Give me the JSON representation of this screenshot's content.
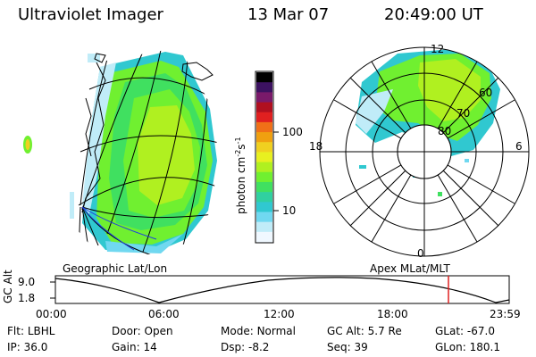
{
  "header": {
    "instrument": "Ultraviolet Imager",
    "date": "13 Mar 07",
    "time": "20:49:00 UT"
  },
  "panels": {
    "left_label": "Geographic Lat/Lon",
    "right_label": "Apex MLat/MLT"
  },
  "colorbar": {
    "label": "photon cm",
    "label_exp1": "-2",
    "label_mid": "s",
    "label_exp2": "-1",
    "ticks": [
      "100",
      "10"
    ],
    "colors": [
      "#000000",
      "#3c1260",
      "#7a1a6a",
      "#b01020",
      "#e02020",
      "#f07018",
      "#f0a010",
      "#f0d020",
      "#e8f020",
      "#b0f020",
      "#70f030",
      "#40e060",
      "#30d0a0",
      "#30c8d0",
      "#70d8f0",
      "#c0ecf8",
      "#f0f8ff"
    ]
  },
  "polar": {
    "mlt_labels": {
      "top": "12",
      "left": "18",
      "right": "6",
      "bottom": "0"
    },
    "lat_labels": [
      "60",
      "70",
      "80"
    ]
  },
  "altitude_plot": {
    "ylabel": "GC Alt",
    "yticks": [
      "9.0",
      "1.8"
    ],
    "xticks": [
      "00:00",
      "06:00",
      "12:00",
      "18:00",
      "23:59"
    ],
    "marker_color": "#e02020"
  },
  "status": {
    "row1": [
      {
        "label": "Flt:",
        "value": "LBHL"
      },
      {
        "label": "Door:",
        "value": "Open"
      },
      {
        "label": "Mode:",
        "value": "Normal"
      },
      {
        "label": "GC Alt:",
        "value": "5.7 Re"
      },
      {
        "label": "GLat:",
        "value": "-67.0"
      }
    ],
    "row2": [
      {
        "label": "IP:",
        "value": "36.0"
      },
      {
        "label": "Gain:",
        "value": "14"
      },
      {
        "label": "Dsp:",
        "value": "-8.2"
      },
      {
        "label": "Seq:",
        "value": "39"
      },
      {
        "label": "GLon:",
        "value": "180.1"
      }
    ]
  }
}
